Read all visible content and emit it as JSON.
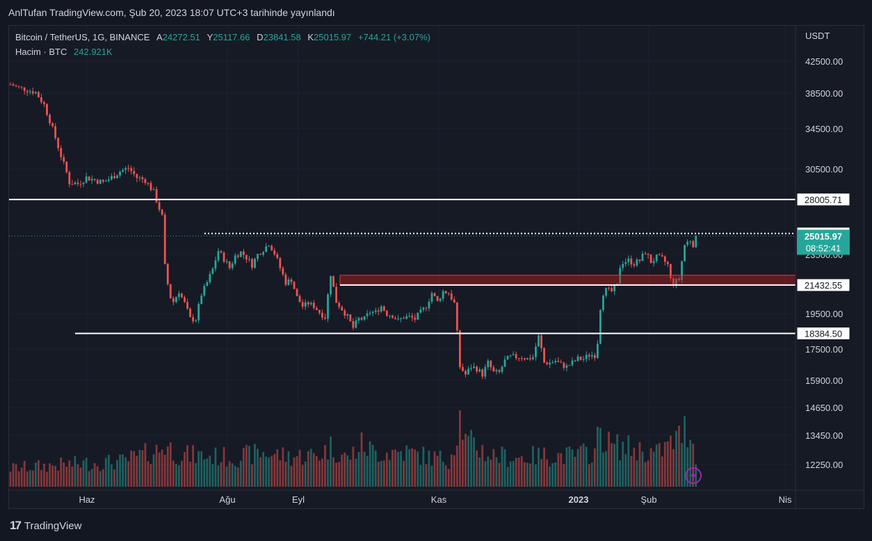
{
  "header": {
    "caption": "AnlTufan TradingView.com, Şub 20, 2023 18:07 UTC+3 tarihinde yayınlandı"
  },
  "legend": {
    "symbol": "Bitcoin / TetherUS, 1G, BINANCE",
    "open_label": "A",
    "open": "24272.51",
    "high_label": "Y",
    "high": "25117.66",
    "low_label": "D",
    "low": "23841.58",
    "close_label": "K",
    "close": "25015.97",
    "change": "+744.21 (+3.07%)",
    "volume_label": "Hacim · BTC",
    "volume": "242.921K"
  },
  "footer": {
    "brand": "TradingView"
  },
  "chart_data": {
    "type": "candlestick",
    "currency": "USDT",
    "y_ticks": [
      "42500.00",
      "38500.00",
      "34500.00",
      "30500.00",
      "23500.00",
      "19500.00",
      "17500.00",
      "15900.00",
      "14650.00",
      "13450.00",
      "12250.00"
    ],
    "x_ticks": [
      "Haz",
      "Ağu",
      "Eyl",
      "Kas",
      "2023",
      "Şub",
      "Nis"
    ],
    "ylim": [
      11500,
      45000
    ],
    "levels": [
      {
        "label": "28005.71",
        "value": 28005.71,
        "style": "solid-white"
      },
      {
        "label": "25219.58",
        "value": 25219.58,
        "style": "dotted-white"
      },
      {
        "label": "21432.55",
        "value": 21432.55,
        "style": "solid-white"
      },
      {
        "label": "18384.50",
        "value": 18384.5,
        "style": "solid-white"
      }
    ],
    "zone": {
      "from": 21432.55,
      "to": 22100,
      "color": "#b71c1c"
    },
    "last_price": {
      "label": "25015.97",
      "value": 25015.97,
      "countdown": "08:52:41"
    },
    "close_path": [
      [
        0,
        39600
      ],
      [
        3,
        39200
      ],
      [
        6,
        38900
      ],
      [
        9,
        38600
      ],
      [
        12,
        37200
      ],
      [
        15,
        34500
      ],
      [
        18,
        31800
      ],
      [
        21,
        29400
      ],
      [
        24,
        29300
      ],
      [
        27,
        29800
      ],
      [
        30,
        29600
      ],
      [
        33,
        29400
      ],
      [
        36,
        29800
      ],
      [
        39,
        30300
      ],
      [
        42,
        30600
      ],
      [
        45,
        29800
      ],
      [
        48,
        29600
      ],
      [
        51,
        28600
      ],
      [
        54,
        26600
      ],
      [
        55,
        22700
      ],
      [
        56,
        21500
      ],
      [
        57,
        20600
      ],
      [
        58,
        20300
      ],
      [
        60,
        21000
      ],
      [
        62,
        20200
      ],
      [
        64,
        19200
      ],
      [
        66,
        19200
      ],
      [
        68,
        20800
      ],
      [
        70,
        21600
      ],
      [
        72,
        22500
      ],
      [
        74,
        23800
      ],
      [
        76,
        23200
      ],
      [
        78,
        22600
      ],
      [
        80,
        23400
      ],
      [
        82,
        23700
      ],
      [
        84,
        23300
      ],
      [
        86,
        22800
      ],
      [
        88,
        23500
      ],
      [
        90,
        23900
      ],
      [
        92,
        24400
      ],
      [
        94,
        23600
      ],
      [
        96,
        22600
      ],
      [
        98,
        21600
      ],
      [
        100,
        21800
      ],
      [
        102,
        20600
      ],
      [
        104,
        20000
      ],
      [
        106,
        20200
      ],
      [
        108,
        20000
      ],
      [
        110,
        19600
      ],
      [
        112,
        19300
      ],
      [
        114,
        22200
      ],
      [
        116,
        20300
      ],
      [
        118,
        19800
      ],
      [
        120,
        19300
      ],
      [
        122,
        18700
      ],
      [
        124,
        19200
      ],
      [
        126,
        19200
      ],
      [
        128,
        19600
      ],
      [
        130,
        19600
      ],
      [
        132,
        20000
      ],
      [
        134,
        19500
      ],
      [
        136,
        19400
      ],
      [
        138,
        19100
      ],
      [
        140,
        19300
      ],
      [
        142,
        19300
      ],
      [
        144,
        19200
      ],
      [
        146,
        19600
      ],
      [
        148,
        20000
      ],
      [
        150,
        20900
      ],
      [
        152,
        20300
      ],
      [
        154,
        21000
      ],
      [
        156,
        20900
      ],
      [
        158,
        20200
      ],
      [
        160,
        16600
      ],
      [
        162,
        16200
      ],
      [
        164,
        16600
      ],
      [
        166,
        16500
      ],
      [
        168,
        16200
      ],
      [
        170,
        16800
      ],
      [
        172,
        16300
      ],
      [
        174,
        16300
      ],
      [
        176,
        16900
      ],
      [
        178,
        17100
      ],
      [
        180,
        17100
      ],
      [
        182,
        17100
      ],
      [
        184,
        17000
      ],
      [
        186,
        17100
      ],
      [
        188,
        18200
      ],
      [
        190,
        16800
      ],
      [
        192,
        16800
      ],
      [
        194,
        16900
      ],
      [
        196,
        16700
      ],
      [
        198,
        16600
      ],
      [
        200,
        16800
      ],
      [
        202,
        17000
      ],
      [
        204,
        17000
      ],
      [
        206,
        17200
      ],
      [
        208,
        17200
      ],
      [
        209,
        17900
      ],
      [
        210,
        19900
      ],
      [
        211,
        20900
      ],
      [
        212,
        21100
      ],
      [
        214,
        21000
      ],
      [
        216,
        21400
      ],
      [
        217,
        22700
      ],
      [
        218,
        23000
      ],
      [
        220,
        23100
      ],
      [
        222,
        22900
      ],
      [
        224,
        23100
      ],
      [
        226,
        23700
      ],
      [
        228,
        23000
      ],
      [
        230,
        23300
      ],
      [
        232,
        23200
      ],
      [
        234,
        22800
      ],
      [
        235,
        21800
      ],
      [
        236,
        21600
      ],
      [
        237,
        21700
      ],
      [
        238,
        21800
      ],
      [
        240,
        24300
      ],
      [
        242,
        24700
      ],
      [
        243,
        24300
      ],
      [
        244,
        25016
      ]
    ],
    "volume_path": [
      [
        0,
        190
      ],
      [
        20,
        230
      ],
      [
        40,
        260
      ],
      [
        53,
        380
      ],
      [
        55,
        430
      ],
      [
        60,
        330
      ],
      [
        80,
        300
      ],
      [
        90,
        350
      ],
      [
        100,
        310
      ],
      [
        110,
        330
      ],
      [
        114,
        410
      ],
      [
        120,
        290
      ],
      [
        125,
        430
      ],
      [
        130,
        350
      ],
      [
        140,
        360
      ],
      [
        150,
        300
      ],
      [
        156,
        280
      ],
      [
        158,
        430
      ],
      [
        160,
        780
      ],
      [
        162,
        460
      ],
      [
        166,
        420
      ],
      [
        170,
        330
      ],
      [
        180,
        300
      ],
      [
        190,
        320
      ],
      [
        200,
        320
      ],
      [
        208,
        360
      ],
      [
        210,
        600
      ],
      [
        212,
        460
      ],
      [
        214,
        420
      ],
      [
        220,
        400
      ],
      [
        230,
        340
      ],
      [
        236,
        460
      ],
      [
        238,
        510
      ],
      [
        240,
        590
      ],
      [
        242,
        570
      ],
      [
        244,
        300
      ]
    ],
    "volume_unit": "BTC"
  }
}
